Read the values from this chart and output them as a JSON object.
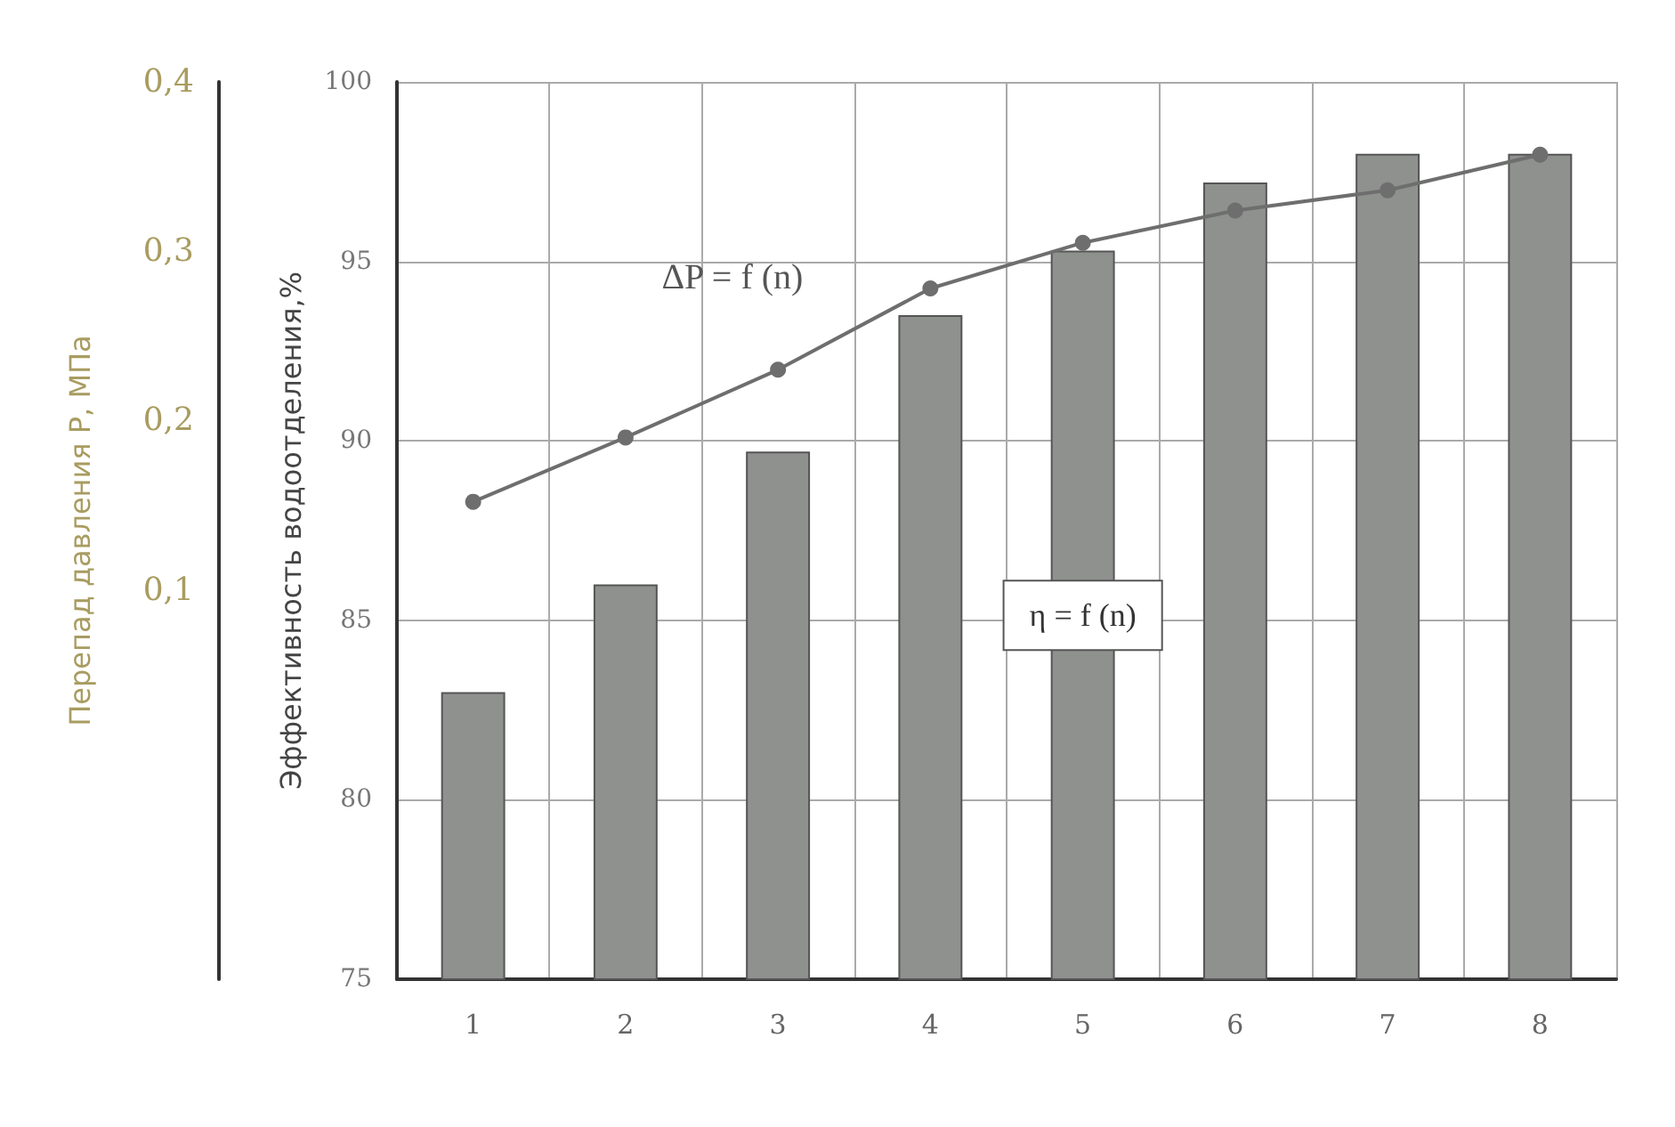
{
  "chart_data": {
    "type": "bar",
    "categories": [
      "1",
      "2",
      "3",
      "4",
      "5",
      "6",
      "7",
      "8"
    ],
    "ylabel": "Эффективность водоотделения,%",
    "y2label": "Перепад давления Р, МПа",
    "ylim": [
      75,
      100
    ],
    "yticks": [
      75,
      80,
      85,
      90,
      95,
      100
    ],
    "y2lim": [
      -0.13,
      0.4
    ],
    "y2ticks": [
      {
        "value": 0.1,
        "label": "0,1"
      },
      {
        "value": 0.2,
        "label": "0,2"
      },
      {
        "value": 0.3,
        "label": "0,3"
      },
      {
        "value": 0.4,
        "label": "0,4"
      }
    ],
    "grid": true,
    "legend": false,
    "marker": "circle",
    "line_style": "solid",
    "series": [
      {
        "name": "η = f (n)",
        "color": "#8e918e",
        "values": [
          83,
          86,
          89.7,
          93.5,
          95.3,
          97.2,
          98,
          98
        ]
      },
      {
        "name": "ΔP = f (n)",
        "type": "line",
        "axis": "y2",
        "color": "#6e6e6e",
        "values": [
          0.152,
          0.19,
          0.23,
          0.278,
          0.305,
          0.324,
          0.336,
          0.357
        ]
      }
    ]
  }
}
